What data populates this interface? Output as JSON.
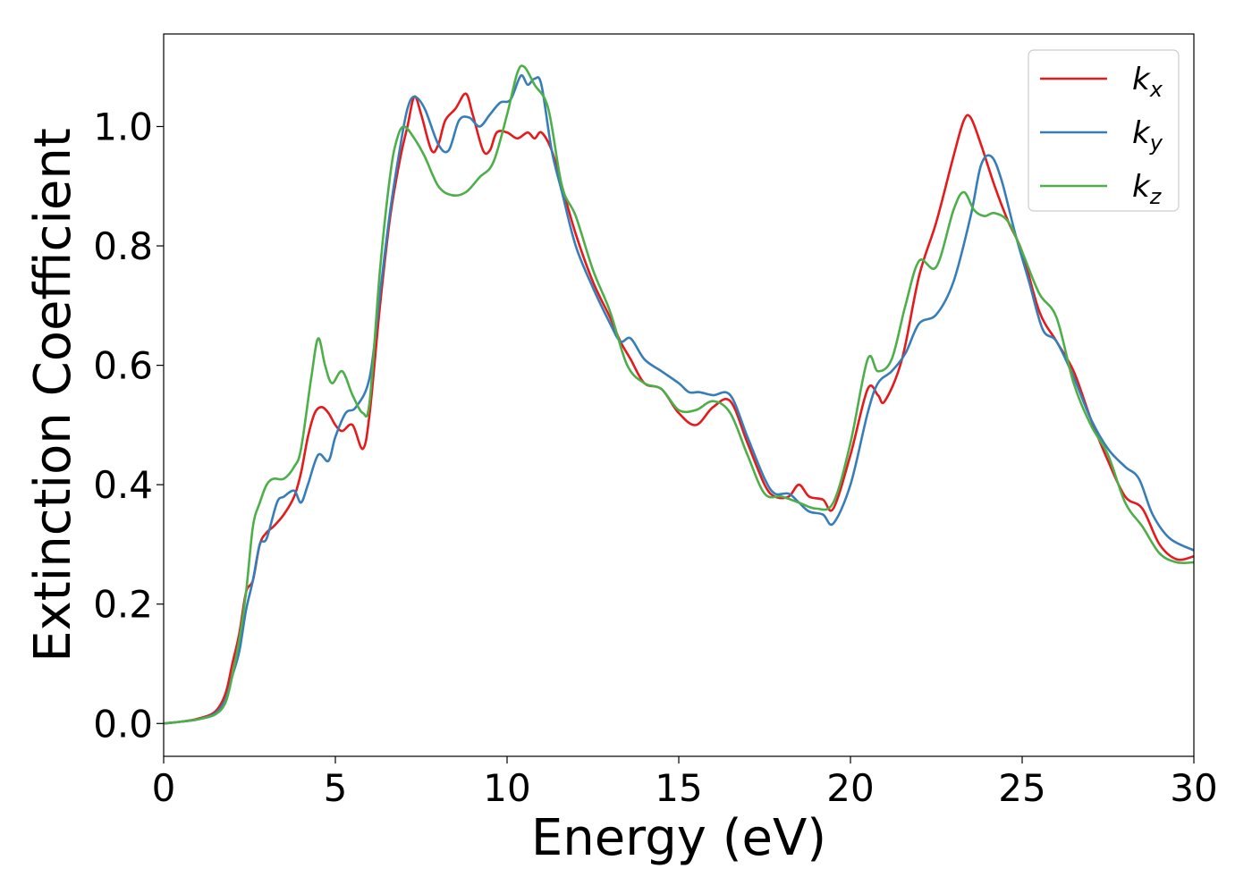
{
  "chart_data": {
    "type": "line",
    "title": "",
    "xlabel": "Energy (eV)",
    "ylabel": "Extinction Coefficient",
    "xlim": [
      0,
      30
    ],
    "ylim": [
      -0.055,
      1.155
    ],
    "xticks": [
      0,
      5,
      10,
      15,
      20,
      25,
      30
    ],
    "xtick_labels": [
      "0",
      "5",
      "10",
      "15",
      "20",
      "25",
      "30"
    ],
    "yticks": [
      0.0,
      0.2,
      0.4,
      0.6,
      0.8,
      1.0
    ],
    "ytick_labels": [
      "0.0",
      "0.2",
      "0.4",
      "0.6",
      "0.8",
      "1.0"
    ],
    "grid": false,
    "legend_position": "top-right",
    "series": [
      {
        "name": "k_x",
        "label_main": "k",
        "label_sub": "x",
        "color": "#e41a1c",
        "points": [
          [
            0,
            0.0
          ],
          [
            0.5,
            0.003
          ],
          [
            1,
            0.008
          ],
          [
            1.5,
            0.02
          ],
          [
            1.8,
            0.05
          ],
          [
            2.0,
            0.1
          ],
          [
            2.2,
            0.15
          ],
          [
            2.4,
            0.22
          ],
          [
            2.6,
            0.24
          ],
          [
            2.8,
            0.3
          ],
          [
            3.0,
            0.32
          ],
          [
            3.2,
            0.33
          ],
          [
            3.5,
            0.35
          ],
          [
            3.8,
            0.38
          ],
          [
            4.0,
            0.42
          ],
          [
            4.2,
            0.48
          ],
          [
            4.4,
            0.52
          ],
          [
            4.6,
            0.53
          ],
          [
            4.8,
            0.52
          ],
          [
            5.0,
            0.5
          ],
          [
            5.2,
            0.49
          ],
          [
            5.5,
            0.5
          ],
          [
            5.8,
            0.46
          ],
          [
            6.0,
            0.52
          ],
          [
            6.3,
            0.7
          ],
          [
            6.6,
            0.85
          ],
          [
            6.9,
            0.95
          ],
          [
            7.1,
            1.0
          ],
          [
            7.3,
            1.05
          ],
          [
            7.5,
            1.02
          ],
          [
            7.8,
            0.96
          ],
          [
            8.0,
            0.97
          ],
          [
            8.2,
            1.01
          ],
          [
            8.5,
            1.03
          ],
          [
            8.8,
            1.055
          ],
          [
            9.0,
            1.02
          ],
          [
            9.3,
            0.96
          ],
          [
            9.5,
            0.96
          ],
          [
            9.7,
            0.99
          ],
          [
            10.0,
            0.99
          ],
          [
            10.3,
            0.98
          ],
          [
            10.6,
            0.99
          ],
          [
            10.8,
            0.98
          ],
          [
            11.0,
            0.99
          ],
          [
            11.3,
            0.96
          ],
          [
            11.6,
            0.9
          ],
          [
            12.0,
            0.82
          ],
          [
            12.5,
            0.74
          ],
          [
            13.0,
            0.68
          ],
          [
            13.3,
            0.64
          ],
          [
            13.6,
            0.61
          ],
          [
            14.0,
            0.57
          ],
          [
            14.5,
            0.56
          ],
          [
            15.0,
            0.52
          ],
          [
            15.5,
            0.5
          ],
          [
            16.0,
            0.53
          ],
          [
            16.5,
            0.54
          ],
          [
            17.0,
            0.47
          ],
          [
            17.5,
            0.4
          ],
          [
            17.8,
            0.38
          ],
          [
            18.2,
            0.38
          ],
          [
            18.5,
            0.4
          ],
          [
            18.8,
            0.38
          ],
          [
            19.2,
            0.375
          ],
          [
            19.5,
            0.36
          ],
          [
            20.0,
            0.45
          ],
          [
            20.5,
            0.56
          ],
          [
            20.8,
            0.55
          ],
          [
            21.0,
            0.54
          ],
          [
            21.5,
            0.61
          ],
          [
            22.0,
            0.75
          ],
          [
            22.5,
            0.84
          ],
          [
            23.0,
            0.95
          ],
          [
            23.3,
            1.01
          ],
          [
            23.5,
            1.015
          ],
          [
            23.8,
            0.97
          ],
          [
            24.2,
            0.9
          ],
          [
            24.6,
            0.84
          ],
          [
            25.0,
            0.79
          ],
          [
            25.5,
            0.69
          ],
          [
            26.0,
            0.64
          ],
          [
            26.5,
            0.59
          ],
          [
            27.0,
            0.51
          ],
          [
            27.5,
            0.44
          ],
          [
            28.0,
            0.38
          ],
          [
            28.5,
            0.36
          ],
          [
            29.0,
            0.3
          ],
          [
            29.5,
            0.275
          ],
          [
            30.0,
            0.28
          ]
        ]
      },
      {
        "name": "k_y",
        "label_main": "k",
        "label_sub": "y",
        "color": "#377eb8",
        "points": [
          [
            0,
            0.0
          ],
          [
            0.5,
            0.003
          ],
          [
            1,
            0.007
          ],
          [
            1.5,
            0.017
          ],
          [
            1.8,
            0.04
          ],
          [
            2.0,
            0.08
          ],
          [
            2.2,
            0.12
          ],
          [
            2.4,
            0.19
          ],
          [
            2.6,
            0.24
          ],
          [
            2.8,
            0.3
          ],
          [
            3.0,
            0.31
          ],
          [
            3.3,
            0.37
          ],
          [
            3.5,
            0.38
          ],
          [
            3.8,
            0.39
          ],
          [
            4.0,
            0.37
          ],
          [
            4.2,
            0.4
          ],
          [
            4.5,
            0.45
          ],
          [
            4.8,
            0.44
          ],
          [
            5.0,
            0.48
          ],
          [
            5.3,
            0.52
          ],
          [
            5.6,
            0.53
          ],
          [
            6.0,
            0.58
          ],
          [
            6.3,
            0.72
          ],
          [
            6.6,
            0.86
          ],
          [
            6.9,
            0.97
          ],
          [
            7.1,
            1.03
          ],
          [
            7.3,
            1.05
          ],
          [
            7.6,
            1.03
          ],
          [
            8.0,
            0.97
          ],
          [
            8.3,
            0.96
          ],
          [
            8.6,
            1.01
          ],
          [
            8.9,
            1.015
          ],
          [
            9.2,
            1.0
          ],
          [
            9.5,
            1.02
          ],
          [
            9.8,
            1.04
          ],
          [
            10.1,
            1.045
          ],
          [
            10.4,
            1.085
          ],
          [
            10.6,
            1.07
          ],
          [
            10.8,
            1.08
          ],
          [
            11.0,
            1.07
          ],
          [
            11.3,
            0.96
          ],
          [
            11.6,
            0.89
          ],
          [
            12.0,
            0.8
          ],
          [
            12.5,
            0.73
          ],
          [
            13.0,
            0.67
          ],
          [
            13.3,
            0.64
          ],
          [
            13.6,
            0.645
          ],
          [
            14.0,
            0.61
          ],
          [
            14.5,
            0.59
          ],
          [
            15.0,
            0.57
          ],
          [
            15.3,
            0.555
          ],
          [
            15.6,
            0.555
          ],
          [
            16.0,
            0.55
          ],
          [
            16.5,
            0.55
          ],
          [
            17.0,
            0.48
          ],
          [
            17.5,
            0.41
          ],
          [
            17.8,
            0.385
          ],
          [
            18.2,
            0.385
          ],
          [
            18.5,
            0.37
          ],
          [
            18.8,
            0.355
          ],
          [
            19.2,
            0.35
          ],
          [
            19.5,
            0.335
          ],
          [
            20.0,
            0.4
          ],
          [
            20.5,
            0.52
          ],
          [
            20.8,
            0.57
          ],
          [
            21.2,
            0.59
          ],
          [
            21.6,
            0.62
          ],
          [
            22.0,
            0.67
          ],
          [
            22.5,
            0.685
          ],
          [
            23.0,
            0.74
          ],
          [
            23.5,
            0.85
          ],
          [
            23.8,
            0.935
          ],
          [
            24.1,
            0.95
          ],
          [
            24.4,
            0.91
          ],
          [
            24.8,
            0.82
          ],
          [
            25.2,
            0.74
          ],
          [
            25.6,
            0.66
          ],
          [
            26.0,
            0.64
          ],
          [
            26.5,
            0.58
          ],
          [
            27.0,
            0.51
          ],
          [
            27.5,
            0.46
          ],
          [
            28.0,
            0.43
          ],
          [
            28.4,
            0.41
          ],
          [
            28.8,
            0.35
          ],
          [
            29.3,
            0.31
          ],
          [
            30.0,
            0.29
          ]
        ]
      },
      {
        "name": "k_z",
        "label_main": "k",
        "label_sub": "z",
        "color": "#4daf4a",
        "points": [
          [
            0,
            0.0
          ],
          [
            0.5,
            0.003
          ],
          [
            1,
            0.007
          ],
          [
            1.5,
            0.015
          ],
          [
            1.8,
            0.035
          ],
          [
            2.0,
            0.08
          ],
          [
            2.2,
            0.14
          ],
          [
            2.4,
            0.22
          ],
          [
            2.6,
            0.33
          ],
          [
            2.8,
            0.37
          ],
          [
            3.0,
            0.4
          ],
          [
            3.2,
            0.41
          ],
          [
            3.5,
            0.41
          ],
          [
            3.8,
            0.43
          ],
          [
            4.0,
            0.46
          ],
          [
            4.3,
            0.58
          ],
          [
            4.5,
            0.645
          ],
          [
            4.7,
            0.6
          ],
          [
            4.9,
            0.57
          ],
          [
            5.2,
            0.59
          ],
          [
            5.5,
            0.55
          ],
          [
            5.8,
            0.52
          ],
          [
            6.0,
            0.54
          ],
          [
            6.3,
            0.76
          ],
          [
            6.6,
            0.92
          ],
          [
            6.8,
            0.98
          ],
          [
            7.0,
            1.0
          ],
          [
            7.3,
            0.98
          ],
          [
            7.6,
            0.95
          ],
          [
            8.0,
            0.9
          ],
          [
            8.4,
            0.885
          ],
          [
            8.8,
            0.89
          ],
          [
            9.2,
            0.915
          ],
          [
            9.6,
            0.94
          ],
          [
            10.0,
            1.02
          ],
          [
            10.3,
            1.09
          ],
          [
            10.5,
            1.1
          ],
          [
            10.8,
            1.07
          ],
          [
            11.2,
            1.03
          ],
          [
            11.6,
            0.9
          ],
          [
            12.0,
            0.85
          ],
          [
            12.5,
            0.76
          ],
          [
            13.0,
            0.69
          ],
          [
            13.5,
            0.6
          ],
          [
            14.0,
            0.57
          ],
          [
            14.5,
            0.56
          ],
          [
            15.0,
            0.525
          ],
          [
            15.5,
            0.525
          ],
          [
            16.0,
            0.54
          ],
          [
            16.5,
            0.52
          ],
          [
            17.0,
            0.45
          ],
          [
            17.5,
            0.385
          ],
          [
            18.0,
            0.38
          ],
          [
            18.5,
            0.37
          ],
          [
            19.0,
            0.36
          ],
          [
            19.5,
            0.37
          ],
          [
            20.0,
            0.47
          ],
          [
            20.5,
            0.61
          ],
          [
            20.8,
            0.59
          ],
          [
            21.2,
            0.61
          ],
          [
            21.6,
            0.7
          ],
          [
            22.0,
            0.775
          ],
          [
            22.5,
            0.765
          ],
          [
            23.0,
            0.86
          ],
          [
            23.3,
            0.89
          ],
          [
            23.6,
            0.86
          ],
          [
            23.9,
            0.85
          ],
          [
            24.2,
            0.855
          ],
          [
            24.6,
            0.84
          ],
          [
            25.0,
            0.79
          ],
          [
            25.5,
            0.72
          ],
          [
            26.0,
            0.68
          ],
          [
            26.5,
            0.57
          ],
          [
            27.0,
            0.5
          ],
          [
            27.5,
            0.45
          ],
          [
            28.0,
            0.37
          ],
          [
            28.5,
            0.33
          ],
          [
            29.0,
            0.285
          ],
          [
            29.5,
            0.27
          ],
          [
            30.0,
            0.27
          ]
        ]
      }
    ]
  }
}
